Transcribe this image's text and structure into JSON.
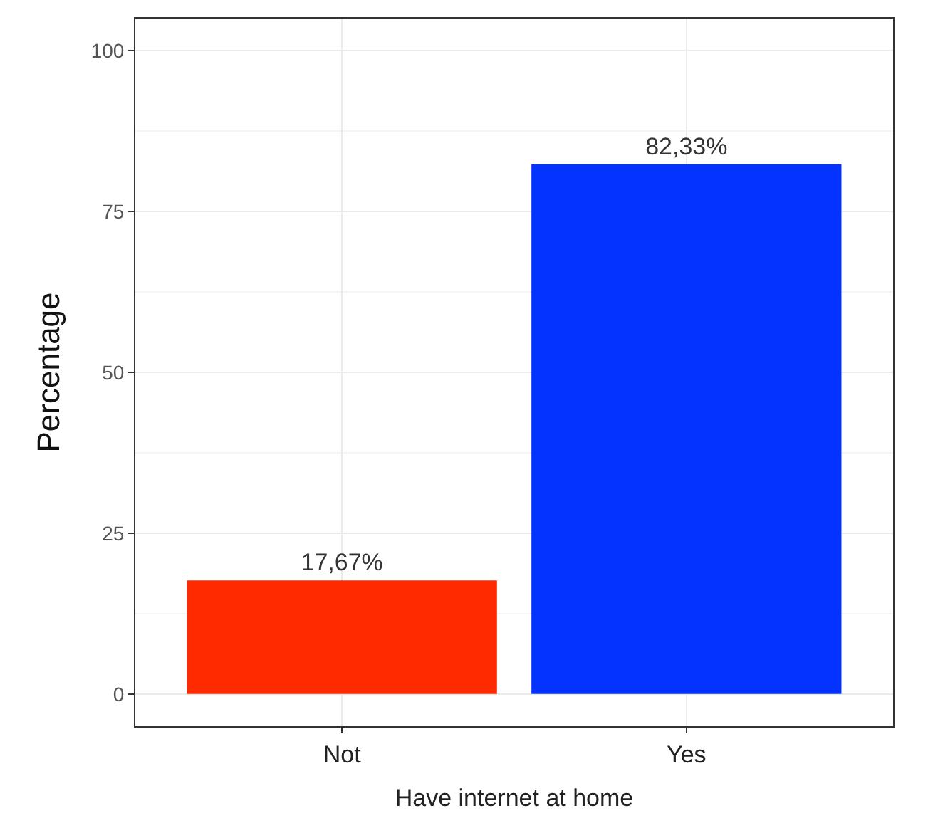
{
  "chart_data": {
    "type": "bar",
    "xlabel": "Have internet at home",
    "ylabel": "Percentage",
    "categories": [
      "Not",
      "Yes"
    ],
    "values": [
      17.67,
      82.33
    ],
    "colors": [
      "#ff2a00",
      "#0433ff"
    ],
    "value_labels": [
      "17,67%",
      "82,33%"
    ],
    "ylim": [
      -5,
      105
    ],
    "yticks": [
      0,
      25,
      50,
      75,
      100
    ],
    "grid": true,
    "legend": false
  }
}
